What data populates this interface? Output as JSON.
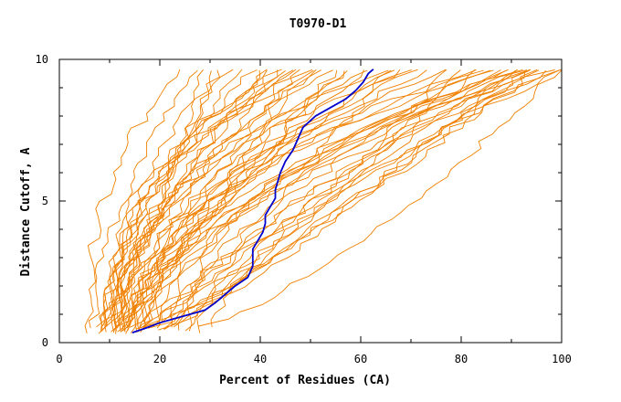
{
  "chart_data": {
    "type": "line",
    "title": "T0970-D1",
    "xlabel": "Percent of Residues (CA)",
    "ylabel": "Distance Cutoff, A",
    "xlim": [
      0,
      100
    ],
    "ylim": [
      0,
      10
    ],
    "x_ticks": [
      "0",
      "20",
      "40",
      "60",
      "80",
      "100"
    ],
    "y_ticks": [
      "0",
      "5",
      "10"
    ],
    "colors": {
      "highlight": "#0000cc",
      "others": "#f08000",
      "axes": "#000000"
    },
    "grid": false,
    "highlight_series": {
      "x": [
        14.5,
        17,
        20,
        23,
        26,
        29,
        31,
        33,
        35,
        37.5,
        38.5,
        38.5,
        38.5,
        39.5,
        40.5,
        41,
        41,
        42,
        43,
        43,
        43.5,
        44,
        45,
        46.5,
        47.5,
        48.5,
        51,
        54,
        57,
        59,
        60.5,
        61.5,
        62.5
      ],
      "y": [
        0.35,
        0.5,
        0.7,
        0.85,
        1.0,
        1.15,
        1.4,
        1.7,
        2.0,
        2.3,
        2.7,
        3.0,
        3.3,
        3.6,
        3.9,
        4.2,
        4.5,
        4.8,
        5.1,
        5.4,
        5.7,
        6.0,
        6.4,
        6.8,
        7.2,
        7.6,
        8.0,
        8.3,
        8.6,
        8.9,
        9.2,
        9.5,
        9.65
      ]
    },
    "other_series_count": 60,
    "other_series_start_x": [
      5.5,
      6.5,
      7,
      7.5,
      8,
      8,
      8.5,
      8.5,
      9,
      9,
      9.5,
      9.5,
      10,
      10,
      10,
      10.5,
      10.5,
      11,
      11,
      11,
      11.5,
      11.5,
      12,
      12,
      12,
      12.5,
      12.5,
      13,
      13,
      13,
      13.5,
      13.5,
      14,
      14,
      14.5,
      14.5,
      15,
      15,
      15.5,
      15.5,
      16,
      16,
      16.5,
      17,
      17,
      17.5,
      18,
      18.5,
      19,
      19.5,
      20,
      21,
      22,
      23,
      24,
      25,
      26,
      27,
      28,
      30
    ],
    "other_series_end_x": [
      24.5,
      27,
      28,
      31,
      32,
      34,
      36,
      38,
      40,
      41,
      42,
      43,
      44,
      45,
      46,
      47,
      48,
      49,
      50,
      51,
      52,
      53,
      55,
      56,
      58,
      60,
      62,
      64,
      65,
      66,
      68,
      70,
      72,
      74,
      76,
      78,
      80,
      82,
      84,
      85,
      86,
      87,
      88,
      89,
      90,
      90.5,
      91,
      91.5,
      92,
      92.5,
      93,
      93.5,
      94,
      95,
      96,
      97,
      98,
      99,
      99.5,
      100
    ]
  }
}
